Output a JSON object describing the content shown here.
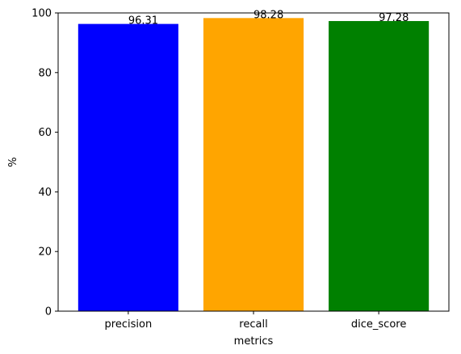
{
  "chart_data": {
    "type": "bar",
    "title": "",
    "xlabel": "metrics",
    "ylabel": "%",
    "categories": [
      "precision",
      "recall",
      "dice_score"
    ],
    "values": [
      96.31,
      98.28,
      97.28
    ],
    "data_labels": [
      "96.31",
      "98.28",
      "97.28"
    ],
    "colors": [
      "#0000ff",
      "#ffa500",
      "#008000"
    ],
    "ylim": [
      0,
      100
    ],
    "yticks": [
      0,
      20,
      40,
      60,
      80,
      100
    ],
    "ytick_labels": [
      "0",
      "20",
      "40",
      "60",
      "80",
      "100"
    ],
    "grid": false,
    "legend": "none"
  }
}
